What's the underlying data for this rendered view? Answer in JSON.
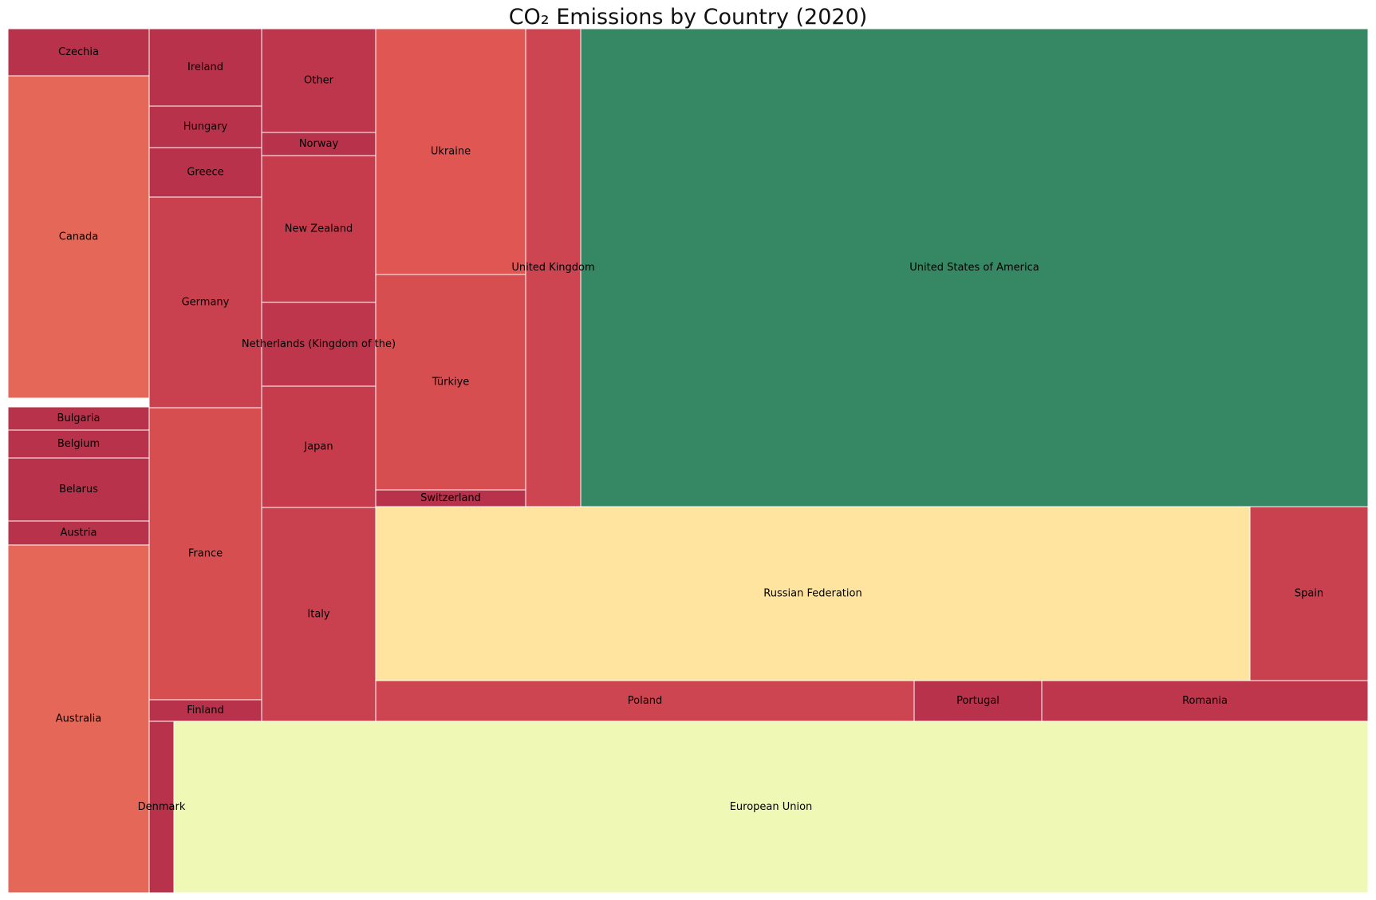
{
  "chart_data": {
    "type": "treemap",
    "title": "CO₂ Emissions by Country (2020)",
    "items": [
      {
        "label": "United States of America",
        "value": 5980,
        "color": "#358863"
      },
      {
        "label": "European Union",
        "value": 3100,
        "color": "#f0f8b5"
      },
      {
        "label": "Russian Federation",
        "value": 2270,
        "color": "#fee49f"
      },
      {
        "label": "Japan",
        "value": 200,
        "color": "#c73c4d"
      },
      {
        "label": "Canada",
        "value": 680,
        "color": "#e56757"
      },
      {
        "label": "Australia",
        "value": 720,
        "color": "#e56757"
      },
      {
        "label": "Ukraine",
        "value": 540,
        "color": "#df5652"
      },
      {
        "label": "Türkiye",
        "value": 480,
        "color": "#d74e51"
      },
      {
        "label": "France",
        "value": 430,
        "color": "#d74e51"
      },
      {
        "label": "United Kingdom",
        "value": 390,
        "color": "#cc4550"
      },
      {
        "label": "Poland",
        "value": 320,
        "color": "#cc4550"
      },
      {
        "label": "Germany",
        "value": 320,
        "color": "#c9404f"
      },
      {
        "label": "Italy",
        "value": 350,
        "color": "#c9404f"
      },
      {
        "label": "Spain",
        "value": 310,
        "color": "#c9404f"
      },
      {
        "label": "New Zealand",
        "value": 255,
        "color": "#c73c4d"
      },
      {
        "label": "Netherlands (Kingdom of the)",
        "value": 140,
        "color": "#bd364c"
      },
      {
        "label": "Romania",
        "value": 140,
        "color": "#bd364c"
      },
      {
        "label": "Other",
        "value": 175,
        "color": "#bd364c"
      },
      {
        "label": "Belarus",
        "value": 118,
        "color": "#b9324b"
      },
      {
        "label": "Ireland",
        "value": 115,
        "color": "#b9324b"
      },
      {
        "label": "Czechia",
        "value": 88,
        "color": "#b9324b"
      },
      {
        "label": "Greece",
        "value": 74,
        "color": "#b9324b"
      },
      {
        "label": "Portugal",
        "value": 68,
        "color": "#b9324b"
      },
      {
        "label": "Hungary",
        "value": 62,
        "color": "#b9324b"
      },
      {
        "label": "Belgium",
        "value": 54,
        "color": "#b9324b"
      },
      {
        "label": "Austria",
        "value": 44,
        "color": "#b9324b"
      },
      {
        "label": "Bulgaria",
        "value": 42,
        "color": "#b9324b"
      },
      {
        "label": "Norway",
        "value": 40,
        "color": "#b9324b"
      },
      {
        "label": "Finland",
        "value": 38,
        "color": "#b9324b"
      },
      {
        "label": "Switzerland",
        "value": 34,
        "color": "#b9324b"
      },
      {
        "label": "Denmark",
        "value": 30,
        "color": "#b9324b"
      }
    ]
  }
}
